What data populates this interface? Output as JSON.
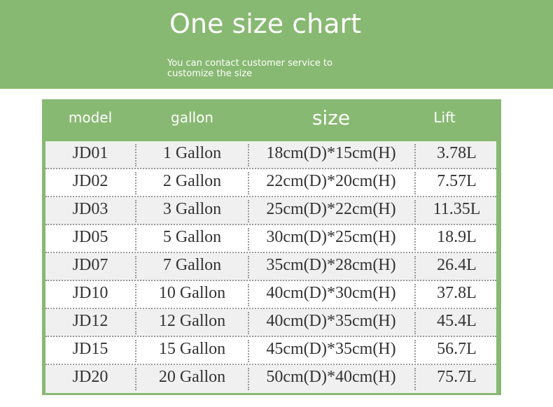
{
  "header": {
    "title": "One size chart",
    "subtitle": "You can contact customer service to customize the size"
  },
  "colors": {
    "accent": "#88b972",
    "row_alt": "#f0f0f0"
  },
  "table": {
    "columns": [
      "model",
      "gallon",
      "size",
      "Lift"
    ],
    "rows": [
      [
        "JD01",
        "1 Gallon",
        "18cm(D)*15cm(H)",
        "3.78L"
      ],
      [
        "JD02",
        "2 Gallon",
        "22cm(D)*20cm(H)",
        "7.57L"
      ],
      [
        "JD03",
        "3 Gallon",
        "25cm(D)*22cm(H)",
        "11.35L"
      ],
      [
        "JD05",
        "5 Gallon",
        "30cm(D)*25cm(H)",
        "18.9L"
      ],
      [
        "JD07",
        "7 Gallon",
        "35cm(D)*28cm(H)",
        "26.4L"
      ],
      [
        "JD10",
        "10 Gallon",
        "40cm(D)*30cm(H)",
        "37.8L"
      ],
      [
        "JD12",
        "12 Gallon",
        "40cm(D)*35cm(H)",
        "45.4L"
      ],
      [
        "JD15",
        "15 Gallon",
        "45cm(D)*35cm(H)",
        "56.7L"
      ],
      [
        "JD20",
        "20 Gallon",
        "50cm(D)*40cm(H)",
        "75.7L"
      ]
    ]
  }
}
